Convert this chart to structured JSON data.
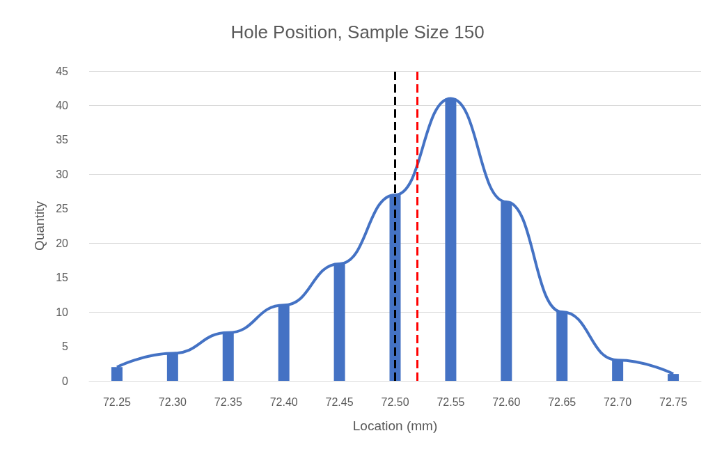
{
  "chart_data": {
    "type": "bar",
    "title": "Hole Position, Sample Size 150",
    "xlabel": "Location (mm)",
    "ylabel": "Quantity",
    "x": [
      72.25,
      72.3,
      72.35,
      72.4,
      72.45,
      72.5,
      72.55,
      72.6,
      72.65,
      72.7,
      72.75
    ],
    "series": [
      {
        "color": "#4472c4",
        "values": [
          2,
          4,
          7,
          11,
          17,
          27,
          41,
          26,
          10,
          3,
          1
        ]
      },
      {
        "type": "line",
        "color": "#4472c4",
        "values": [
          2,
          4,
          7,
          11,
          17,
          27,
          41,
          26,
          10,
          3,
          1
        ]
      }
    ],
    "xlim": [
      72.225,
      72.775
    ],
    "xticks": [
      {
        "value": 72.25,
        "label": "72.25"
      },
      {
        "value": 72.3,
        "label": "72.30"
      },
      {
        "value": 72.35,
        "label": "72.35"
      },
      {
        "value": 72.4,
        "label": "72.40"
      },
      {
        "value": 72.45,
        "label": "72.45"
      },
      {
        "value": 72.5,
        "label": "72.50"
      },
      {
        "value": 72.55,
        "label": "72.55"
      },
      {
        "value": 72.6,
        "label": "72.60"
      },
      {
        "value": 72.65,
        "label": "72.65"
      },
      {
        "value": 72.7,
        "label": "72.70"
      },
      {
        "value": 72.75,
        "label": "72.75"
      }
    ],
    "ylim": [
      0,
      45
    ],
    "yticks": [
      0,
      5,
      10,
      15,
      20,
      25,
      30,
      35,
      40,
      45
    ],
    "grid": "y",
    "marker": "none",
    "ref_lines": [
      {
        "axis": "x",
        "value": 72.5,
        "color": "#000000",
        "line_style": "dashed"
      },
      {
        "axis": "x",
        "value": 72.518,
        "color": "#ff0000",
        "line_style": "dashed"
      }
    ]
  }
}
